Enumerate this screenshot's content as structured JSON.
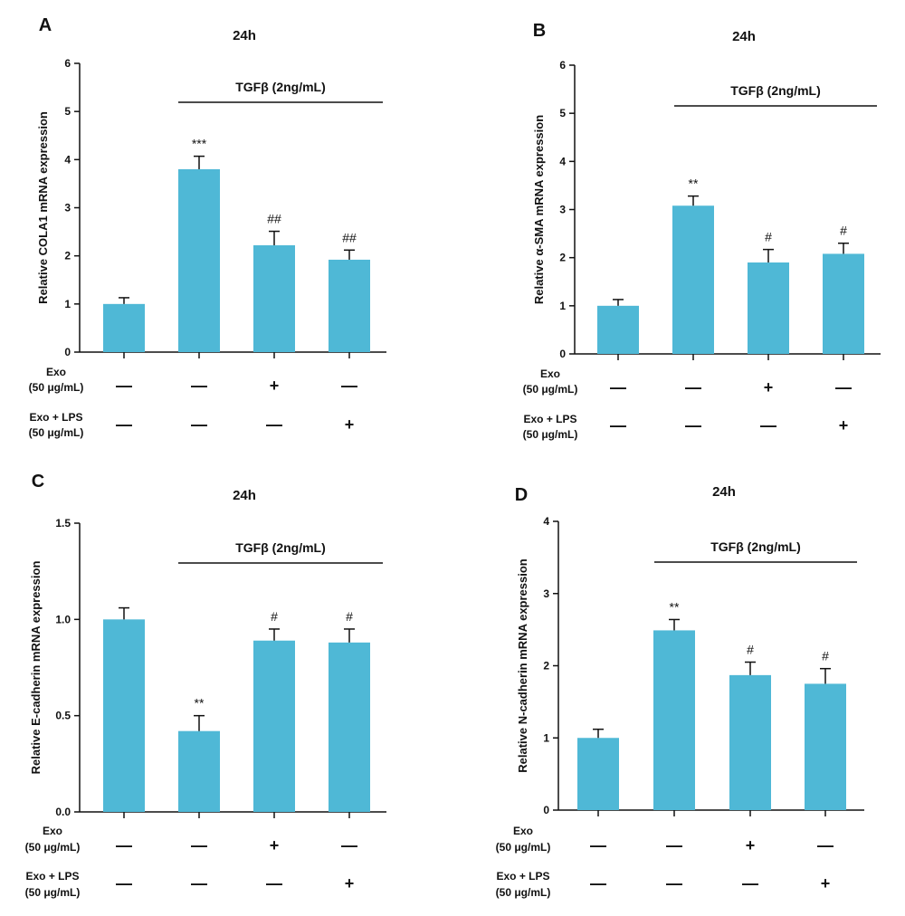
{
  "colors": {
    "bar": "#4FB8D6",
    "axis": "#111111"
  },
  "chart_data": [
    {
      "panel": "A",
      "type": "bar",
      "title": "24h",
      "ylabel": "Relative COLA1 mRNA expression",
      "ylim": [
        0,
        6
      ],
      "yticks": [
        "0",
        "1",
        "2",
        "3",
        "4",
        "5",
        "6"
      ],
      "values": [
        1.0,
        3.8,
        2.22,
        1.92
      ],
      "errors": [
        0.13,
        0.27,
        0.29,
        0.2
      ],
      "sig": [
        "",
        "***",
        "##",
        "##"
      ],
      "bracket": {
        "label": "TGFβ (2ng/mL)",
        "from": 1,
        "to": 3
      },
      "rows": [
        {
          "label": [
            "Exo",
            "(50 μg/mL)"
          ],
          "values": [
            "—",
            "—",
            "+",
            "—"
          ]
        },
        {
          "label": [
            "Exo + LPS",
            "(50 μg/mL)"
          ],
          "values": [
            "—",
            "—",
            "—",
            "+"
          ]
        }
      ]
    },
    {
      "panel": "B",
      "type": "bar",
      "title": "24h",
      "ylabel": "Relative α-SMA mRNA expression",
      "ylim": [
        0,
        6
      ],
      "yticks": [
        "0",
        "1",
        "2",
        "3",
        "4",
        "5",
        "6"
      ],
      "values": [
        1.0,
        3.08,
        1.9,
        2.08
      ],
      "errors": [
        0.13,
        0.2,
        0.27,
        0.22
      ],
      "sig": [
        "",
        "**",
        "#",
        "#"
      ],
      "bracket": {
        "label": "TGFβ (2ng/mL)",
        "from": 1,
        "to": 3
      },
      "rows": [
        {
          "label": [
            "Exo",
            "(50 μg/mL)"
          ],
          "values": [
            "—",
            "—",
            "+",
            "—"
          ]
        },
        {
          "label": [
            "Exo + LPS",
            "(50 μg/mL)"
          ],
          "values": [
            "—",
            "—",
            "—",
            "+"
          ]
        }
      ]
    },
    {
      "panel": "C",
      "type": "bar",
      "title": "24h",
      "ylabel": "Relative E-cadherin mRNA expression",
      "ylim": [
        0,
        1.5
      ],
      "yticks": [
        "0.0",
        "0.5",
        "1.0",
        "1.5"
      ],
      "values": [
        1.0,
        0.42,
        0.89,
        0.88
      ],
      "errors": [
        0.06,
        0.08,
        0.06,
        0.07
      ],
      "sig": [
        "",
        "**",
        "#",
        "#"
      ],
      "bracket": {
        "label": "TGFβ (2ng/mL)",
        "from": 1,
        "to": 3
      },
      "rows": [
        {
          "label": [
            "Exo",
            "(50 μg/mL)"
          ],
          "values": [
            "—",
            "—",
            "+",
            "—"
          ]
        },
        {
          "label": [
            "Exo + LPS",
            "(50 μg/mL)"
          ],
          "values": [
            "—",
            "—",
            "—",
            "+"
          ]
        }
      ]
    },
    {
      "panel": "D",
      "type": "bar",
      "title": "24h",
      "ylabel": "Relative N-cadherin mRNA expression",
      "ylim": [
        0,
        4
      ],
      "yticks": [
        "0",
        "1",
        "2",
        "3",
        "4"
      ],
      "values": [
        1.0,
        2.49,
        1.87,
        1.75
      ],
      "errors": [
        0.12,
        0.15,
        0.18,
        0.21
      ],
      "sig": [
        "",
        "**",
        "#",
        "#"
      ],
      "bracket": {
        "label": "TGFβ (2ng/mL)",
        "from": 1,
        "to": 3
      },
      "rows": [
        {
          "label": [
            "Exo",
            "(50 μg/mL)"
          ],
          "values": [
            "—",
            "—",
            "+",
            "—"
          ]
        },
        {
          "label": [
            "Exo + LPS",
            "(50 μg/mL)"
          ],
          "values": [
            "—",
            "—",
            "—",
            "+"
          ]
        }
      ]
    }
  ]
}
